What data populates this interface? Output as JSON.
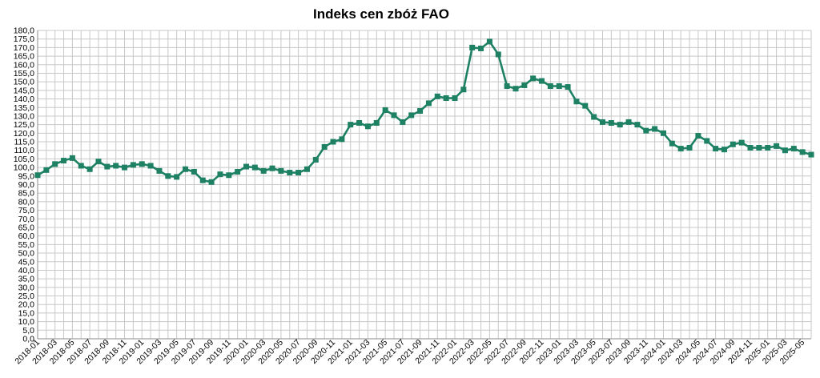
{
  "chart_data": {
    "type": "line",
    "title": "Indeks cen zbóż FAO",
    "xlabel": "",
    "ylabel": "",
    "ylim": [
      0,
      180
    ],
    "y_tick_step": 5,
    "y_tick_decimals": 1,
    "grid": true,
    "legend": "none",
    "x_tick_every": 2,
    "line_color": "#1e8163",
    "marker": "square",
    "series": [
      {
        "x": [
          "2018-01",
          "2018-02",
          "2018-03",
          "2018-04",
          "2018-05",
          "2018-06",
          "2018-07",
          "2018-08",
          "2018-09",
          "2018-10",
          "2018-11",
          "2018-12",
          "2019-01",
          "2019-02",
          "2019-03",
          "2019-04",
          "2019-05",
          "2019-06",
          "2019-07",
          "2019-08",
          "2019-09",
          "2019-10",
          "2019-11",
          "2019-12",
          "2020-01",
          "2020-02",
          "2020-03",
          "2020-04",
          "2020-05",
          "2020-06",
          "2020-07",
          "2020-08",
          "2020-09",
          "2020-10",
          "2020-11",
          "2020-12",
          "2021-01",
          "2021-02",
          "2021-03",
          "2021-04",
          "2021-05",
          "2021-06",
          "2021-07",
          "2021-08",
          "2021-09",
          "2021-10",
          "2021-11",
          "2021-12",
          "2022-01",
          "2022-02",
          "2022-03",
          "2022-04",
          "2022-05",
          "2022-06",
          "2022-07",
          "2022-08",
          "2022-09",
          "2022-10",
          "2022-11",
          "2022-12",
          "2023-01",
          "2023-02",
          "2023-03",
          "2023-04",
          "2023-05",
          "2023-06",
          "2023-07",
          "2023-08",
          "2023-09",
          "2023-10",
          "2023-11",
          "2023-12",
          "2024-01",
          "2024-02",
          "2024-03",
          "2024-04",
          "2024-05",
          "2024-06",
          "2024-07",
          "2024-08",
          "2024-09",
          "2024-10",
          "2024-11",
          "2024-12",
          "2025-01",
          "2025-02",
          "2025-03",
          "2025-04",
          "2025-05",
          "2025-06"
        ],
        "values": [
          95.5,
          98.5,
          102.0,
          104.0,
          105.5,
          101.0,
          99.0,
          103.5,
          100.5,
          101.0,
          100.0,
          101.5,
          102.0,
          101.0,
          98.0,
          95.0,
          94.5,
          99.0,
          97.5,
          92.5,
          91.5,
          96.0,
          95.5,
          97.5,
          100.5,
          100.0,
          98.0,
          99.5,
          98.0,
          97.0,
          97.0,
          99.0,
          104.5,
          112.0,
          115.0,
          116.5,
          125.0,
          126.0,
          124.0,
          126.0,
          133.5,
          130.5,
          126.5,
          130.5,
          133.0,
          137.5,
          141.5,
          140.5,
          140.5,
          145.5,
          170.0,
          169.5,
          173.5,
          166.0,
          147.5,
          146.0,
          148.0,
          152.0,
          150.5,
          147.5,
          147.5,
          147.0,
          138.5,
          136.0,
          129.5,
          126.5,
          126.0,
          125.0,
          126.5,
          125.0,
          121.5,
          122.5,
          120.0,
          114.0,
          111.0,
          111.5,
          118.5,
          115.5,
          111.0,
          110.5,
          113.5,
          114.5,
          111.5,
          111.5,
          111.5,
          112.5,
          110.0,
          111.0,
          109.0,
          107.5
        ]
      }
    ]
  }
}
